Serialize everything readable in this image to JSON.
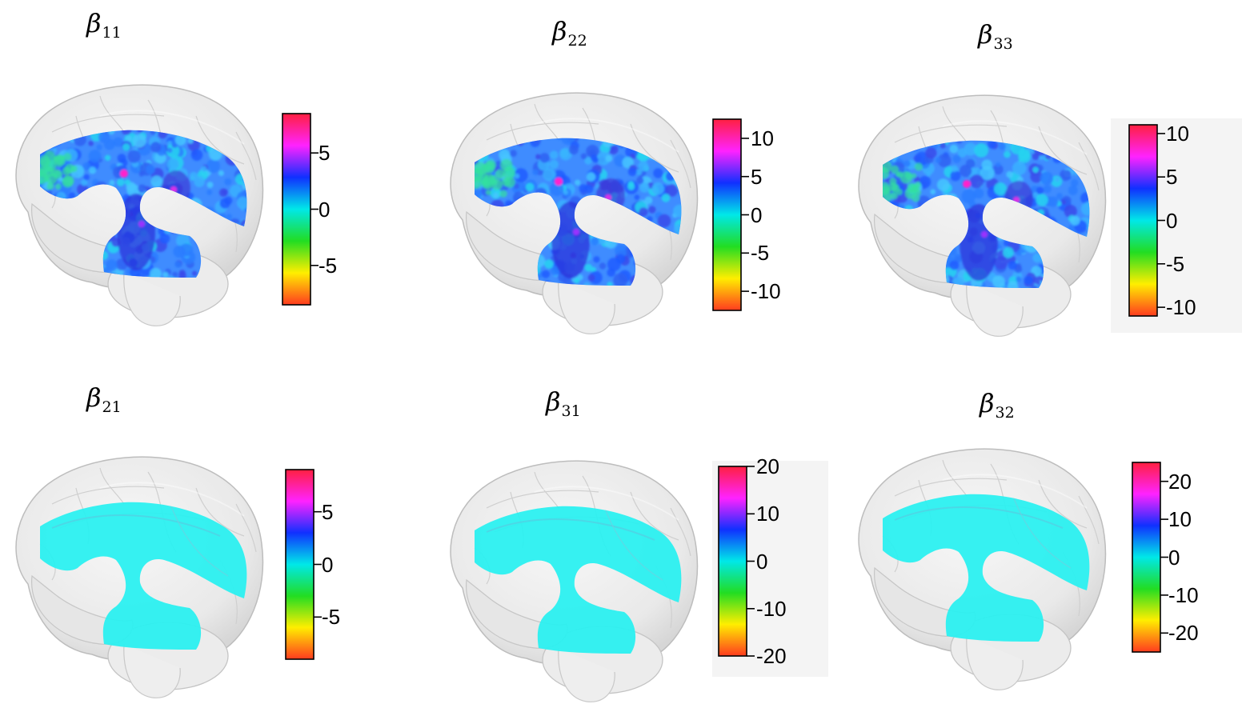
{
  "figure": {
    "panels": [
      {
        "id": "b11",
        "title_symbol": "β",
        "title_sub": "11",
        "map": "strong",
        "colorbar_ticks": [
          "5",
          "0",
          "-5"
        ],
        "colorbar_range": [
          -8.5,
          8.5
        ],
        "tick_values": [
          5,
          0,
          -5
        ]
      },
      {
        "id": "b22",
        "title_symbol": "β",
        "title_sub": "22",
        "map": "strong",
        "colorbar_ticks": [
          "10",
          "5",
          "0",
          "-5",
          "-10"
        ],
        "colorbar_range": [
          -12.5,
          12.5
        ],
        "tick_values": [
          10,
          5,
          0,
          -5,
          -10
        ]
      },
      {
        "id": "b33",
        "title_symbol": "β",
        "title_sub": "33",
        "map": "strong",
        "colorbar_ticks": [
          "10",
          "5",
          "0",
          "-5",
          "-10"
        ],
        "colorbar_range": [
          -11,
          11
        ],
        "tick_values": [
          10,
          5,
          0,
          -5,
          -10
        ]
      },
      {
        "id": "b21",
        "title_symbol": "β",
        "title_sub": "21",
        "map": "flat",
        "colorbar_ticks": [
          "5",
          "0",
          "-5"
        ],
        "colorbar_range": [
          -9,
          9
        ],
        "tick_values": [
          5,
          0,
          -5
        ]
      },
      {
        "id": "b31",
        "title_symbol": "β",
        "title_sub": "31",
        "map": "flat",
        "colorbar_ticks": [
          "20",
          "10",
          "0",
          "-10",
          "-20"
        ],
        "colorbar_range": [
          -20,
          20
        ],
        "tick_values": [
          20,
          10,
          0,
          -10,
          -20
        ]
      },
      {
        "id": "b32",
        "title_symbol": "β",
        "title_sub": "32",
        "map": "flat",
        "colorbar_ticks": [
          "20",
          "10",
          "0",
          "-10",
          "-20"
        ],
        "colorbar_range": [
          -25,
          25
        ],
        "tick_values": [
          20,
          10,
          0,
          -10,
          -20
        ]
      }
    ],
    "colormap": [
      "#ff3b1f",
      "#ffee00",
      "#22dd22",
      "#00e8e8",
      "#1030ff",
      "#ff22ff",
      "#ff2040"
    ]
  }
}
